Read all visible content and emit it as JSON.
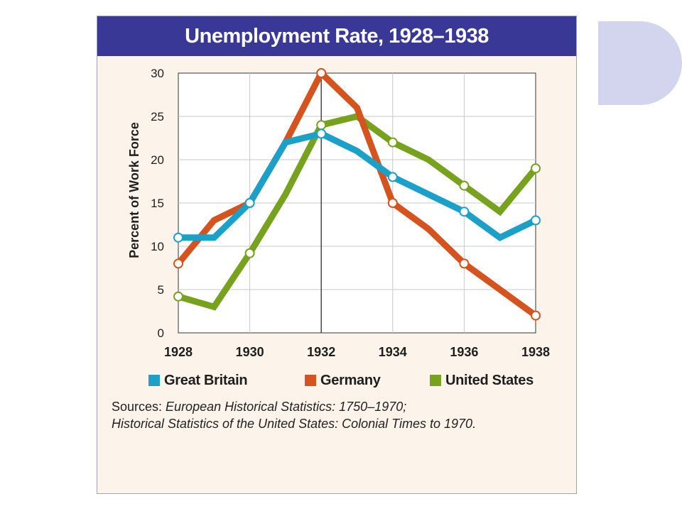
{
  "chart_data": {
    "type": "line",
    "title": "Unemployment Rate, 1928–1938",
    "xlabel": "",
    "ylabel": "Percent of Work Force",
    "xlim": [
      1928,
      1938
    ],
    "ylim": [
      0,
      30
    ],
    "x_ticks": [
      1928,
      1930,
      1932,
      1934,
      1936,
      1938
    ],
    "y_ticks": [
      0,
      5,
      10,
      15,
      20,
      25,
      30
    ],
    "grid": true,
    "legend_position": "bottom",
    "series": [
      {
        "name": "Great Britain",
        "color": "#1ba0c8",
        "x": [
          1928,
          1929,
          1930,
          1931,
          1932,
          1933,
          1934,
          1935,
          1936,
          1937,
          1938
        ],
        "values": [
          11,
          11,
          15,
          22,
          23,
          21,
          18,
          16,
          14,
          11,
          13
        ]
      },
      {
        "name": "Germany",
        "color": "#d4531e",
        "x": [
          1928,
          1929,
          1930,
          1931,
          1932,
          1933,
          1934,
          1935,
          1936,
          1937,
          1938
        ],
        "values": [
          8,
          13,
          15,
          22,
          30,
          26,
          15,
          12,
          8,
          5,
          2
        ]
      },
      {
        "name": "United States",
        "color": "#76a21e",
        "x": [
          1928,
          1929,
          1930,
          1931,
          1932,
          1933,
          1934,
          1935,
          1936,
          1937,
          1938
        ],
        "values": [
          4.2,
          3,
          9.2,
          16,
          24,
          25,
          22,
          20,
          17,
          14,
          19
        ]
      }
    ],
    "marked_years": [
      1928,
      1930,
      1932,
      1934,
      1936,
      1938
    ]
  },
  "sources": {
    "prefix": "Sources: ",
    "line1": "European Historical Statistics: 1750–1970;",
    "line2": "Historical Statistics of the United States: Colonial Times to 1970."
  },
  "colors": {
    "title_bar": "#3a3897",
    "panel_background": "#fcf4ea",
    "plot_background": "#ffffff",
    "grid": "#c8c8c8"
  }
}
